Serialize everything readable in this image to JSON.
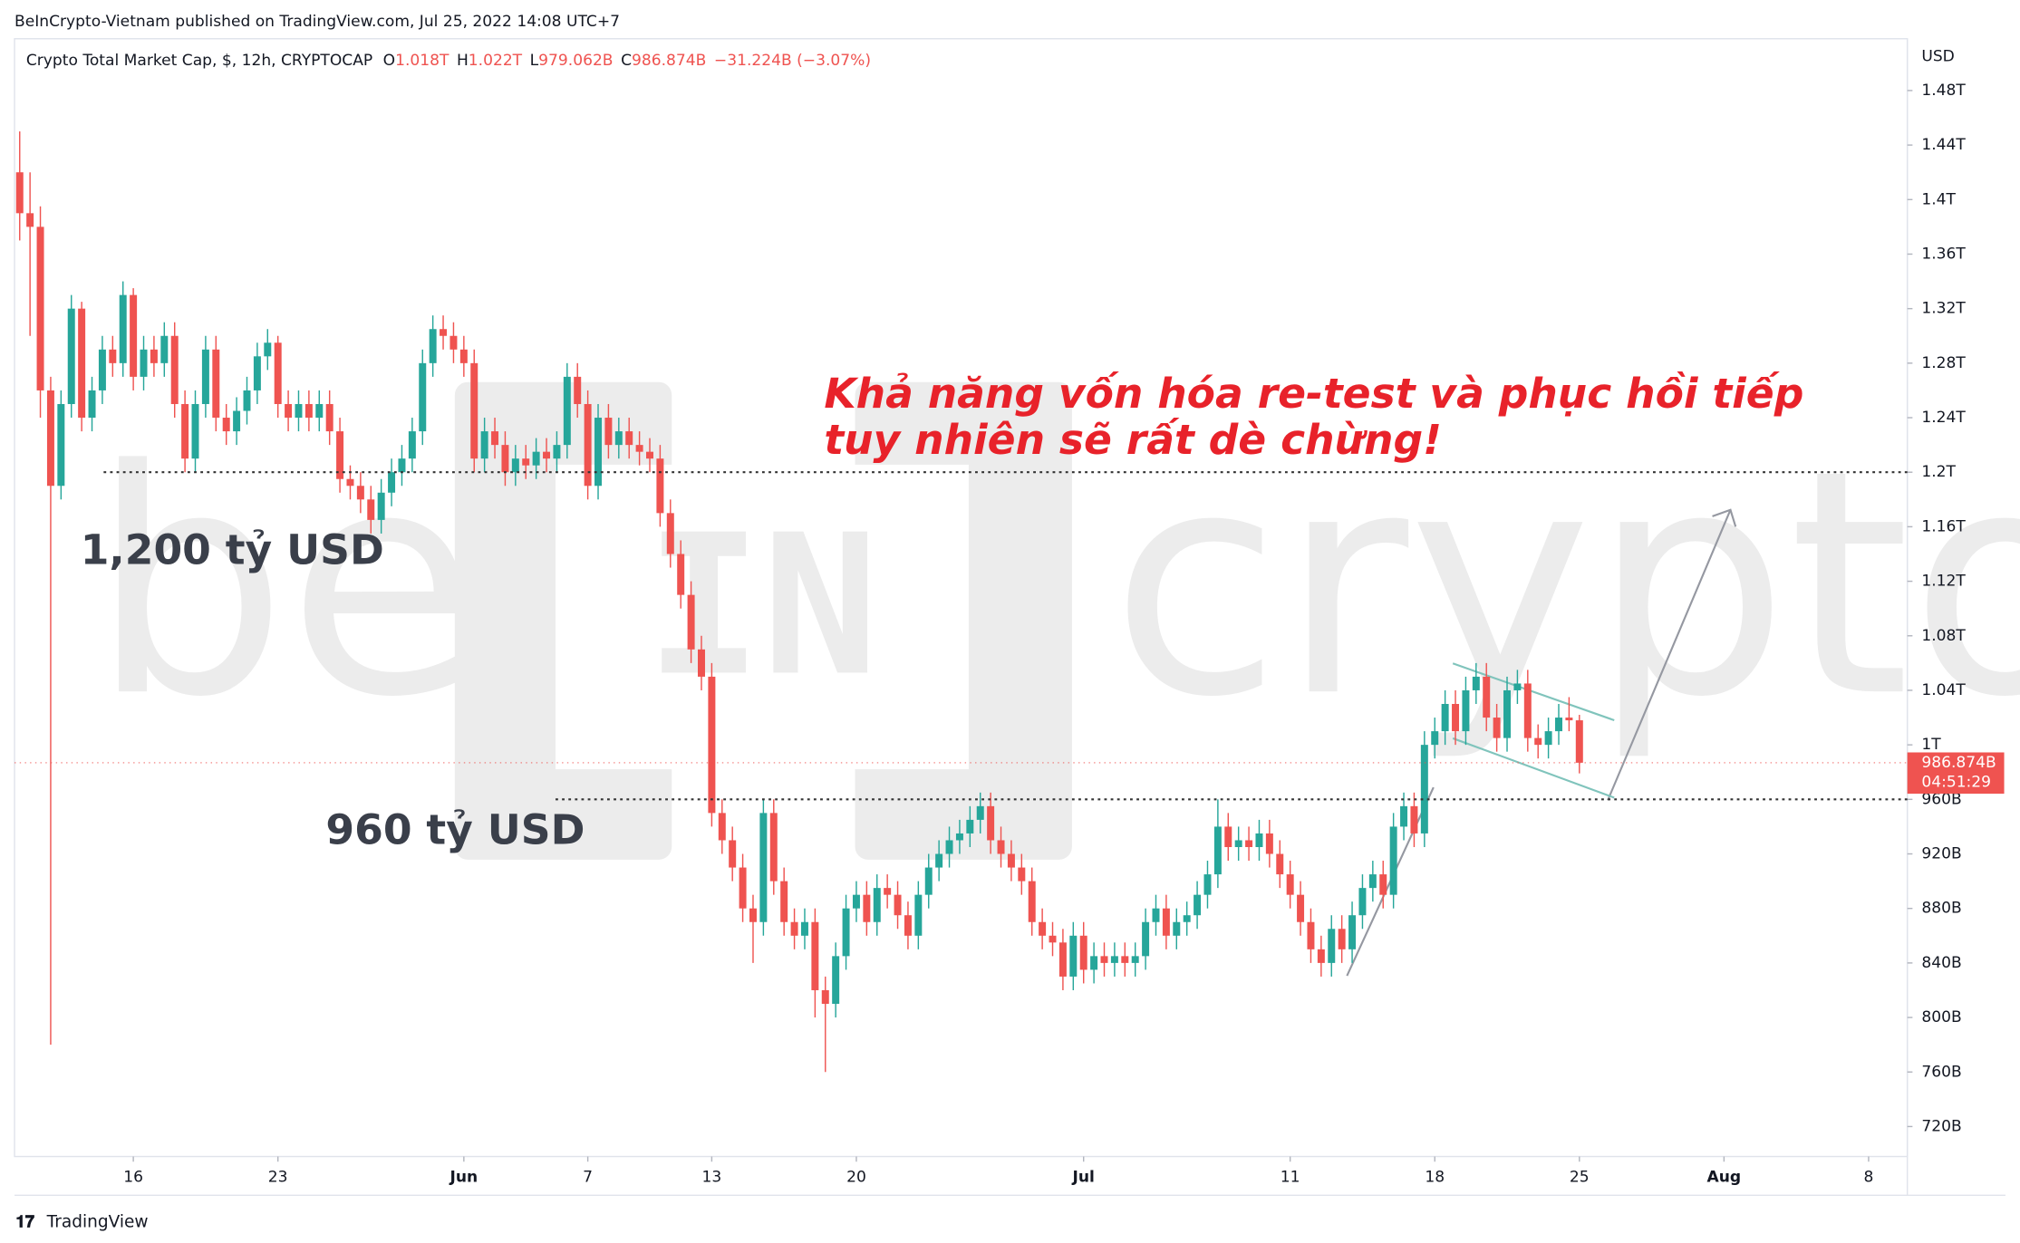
{
  "publisher": "BeInCrypto-Vietnam published on TradingView.com, Jul 25, 2022 14:08 UTC+7",
  "footer": "TradingView",
  "chart_data": {
    "type": "candlestick",
    "title": "Crypto Total Market Cap, $, 12h, CRYPTOCAP",
    "ohlc_header": {
      "o_label": "O",
      "o": "1.018T",
      "h_label": "H",
      "h": "1.022T",
      "l_label": "L",
      "l": "979.062B",
      "c_label": "C",
      "c": "986.874B",
      "change": "−31.224B (−3.07%)"
    },
    "y_unit": "USD",
    "up_color": "#26a69a",
    "down_color": "#ef5350",
    "candles": [
      [
        1420,
        1450,
        1370,
        1390
      ],
      [
        1390,
        1420,
        1300,
        1380
      ],
      [
        1380,
        1395,
        1240,
        1260
      ],
      [
        1260,
        1270,
        780,
        1190
      ],
      [
        1190,
        1260,
        1180,
        1250
      ],
      [
        1250,
        1330,
        1240,
        1320
      ],
      [
        1320,
        1325,
        1230,
        1240
      ],
      [
        1240,
        1270,
        1230,
        1260
      ],
      [
        1260,
        1300,
        1250,
        1290
      ],
      [
        1290,
        1300,
        1270,
        1280
      ],
      [
        1280,
        1340,
        1270,
        1330
      ],
      [
        1330,
        1335,
        1260,
        1270
      ],
      [
        1270,
        1300,
        1260,
        1290
      ],
      [
        1290,
        1300,
        1270,
        1280
      ],
      [
        1280,
        1310,
        1270,
        1300
      ],
      [
        1300,
        1310,
        1240,
        1250
      ],
      [
        1250,
        1260,
        1200,
        1210
      ],
      [
        1210,
        1260,
        1200,
        1250
      ],
      [
        1250,
        1300,
        1240,
        1290
      ],
      [
        1290,
        1300,
        1230,
        1240
      ],
      [
        1240,
        1250,
        1220,
        1230
      ],
      [
        1230,
        1255,
        1220,
        1245
      ],
      [
        1245,
        1270,
        1235,
        1260
      ],
      [
        1260,
        1295,
        1250,
        1285
      ],
      [
        1285,
        1305,
        1275,
        1295
      ],
      [
        1295,
        1300,
        1240,
        1250
      ],
      [
        1250,
        1260,
        1230,
        1240
      ],
      [
        1240,
        1260,
        1230,
        1250
      ],
      [
        1250,
        1260,
        1230,
        1240
      ],
      [
        1240,
        1260,
        1230,
        1250
      ],
      [
        1250,
        1260,
        1220,
        1230
      ],
      [
        1230,
        1240,
        1185,
        1195
      ],
      [
        1195,
        1205,
        1180,
        1190
      ],
      [
        1190,
        1200,
        1170,
        1180
      ],
      [
        1180,
        1190,
        1155,
        1165
      ],
      [
        1165,
        1195,
        1155,
        1185
      ],
      [
        1185,
        1210,
        1175,
        1200
      ],
      [
        1200,
        1220,
        1190,
        1210
      ],
      [
        1210,
        1240,
        1200,
        1230
      ],
      [
        1230,
        1290,
        1220,
        1280
      ],
      [
        1280,
        1315,
        1270,
        1305
      ],
      [
        1305,
        1315,
        1290,
        1300
      ],
      [
        1300,
        1310,
        1280,
        1290
      ],
      [
        1290,
        1300,
        1270,
        1280
      ],
      [
        1280,
        1290,
        1200,
        1210
      ],
      [
        1210,
        1240,
        1200,
        1230
      ],
      [
        1230,
        1240,
        1210,
        1220
      ],
      [
        1220,
        1230,
        1190,
        1200
      ],
      [
        1200,
        1220,
        1190,
        1210
      ],
      [
        1210,
        1220,
        1195,
        1205
      ],
      [
        1205,
        1225,
        1195,
        1215
      ],
      [
        1215,
        1225,
        1200,
        1210
      ],
      [
        1210,
        1230,
        1200,
        1220
      ],
      [
        1220,
        1280,
        1210,
        1270
      ],
      [
        1270,
        1280,
        1240,
        1250
      ],
      [
        1250,
        1260,
        1180,
        1190
      ],
      [
        1190,
        1250,
        1180,
        1240
      ],
      [
        1240,
        1250,
        1210,
        1220
      ],
      [
        1220,
        1240,
        1210,
        1230
      ],
      [
        1230,
        1240,
        1210,
        1220
      ],
      [
        1220,
        1230,
        1205,
        1215
      ],
      [
        1215,
        1225,
        1200,
        1210
      ],
      [
        1210,
        1220,
        1160,
        1170
      ],
      [
        1170,
        1180,
        1130,
        1140
      ],
      [
        1140,
        1150,
        1100,
        1110
      ],
      [
        1110,
        1120,
        1060,
        1070
      ],
      [
        1070,
        1080,
        1040,
        1050
      ],
      [
        1050,
        1060,
        940,
        950
      ],
      [
        950,
        960,
        920,
        930
      ],
      [
        930,
        940,
        900,
        910
      ],
      [
        910,
        920,
        870,
        880
      ],
      [
        880,
        890,
        840,
        870
      ],
      [
        870,
        960,
        860,
        950
      ],
      [
        950,
        960,
        890,
        900
      ],
      [
        900,
        910,
        860,
        870
      ],
      [
        870,
        880,
        850,
        860
      ],
      [
        860,
        880,
        850,
        870
      ],
      [
        870,
        880,
        800,
        820
      ],
      [
        820,
        830,
        760,
        810
      ],
      [
        810,
        855,
        800,
        845
      ],
      [
        845,
        890,
        835,
        880
      ],
      [
        880,
        900,
        870,
        890
      ],
      [
        890,
        900,
        860,
        870
      ],
      [
        870,
        905,
        860,
        895
      ],
      [
        895,
        905,
        880,
        890
      ],
      [
        890,
        900,
        865,
        875
      ],
      [
        875,
        885,
        850,
        860
      ],
      [
        860,
        900,
        850,
        890
      ],
      [
        890,
        920,
        880,
        910
      ],
      [
        910,
        930,
        900,
        920
      ],
      [
        920,
        940,
        910,
        930
      ],
      [
        930,
        945,
        920,
        935
      ],
      [
        935,
        955,
        925,
        945
      ],
      [
        945,
        965,
        935,
        955
      ],
      [
        955,
        965,
        920,
        930
      ],
      [
        930,
        940,
        910,
        920
      ],
      [
        920,
        930,
        900,
        910
      ],
      [
        910,
        920,
        890,
        900
      ],
      [
        900,
        910,
        860,
        870
      ],
      [
        870,
        880,
        850,
        860
      ],
      [
        860,
        870,
        845,
        855
      ],
      [
        855,
        865,
        820,
        830
      ],
      [
        830,
        870,
        820,
        860
      ],
      [
        860,
        870,
        825,
        835
      ],
      [
        835,
        855,
        825,
        845
      ],
      [
        845,
        855,
        830,
        840
      ],
      [
        840,
        855,
        830,
        845
      ],
      [
        845,
        855,
        830,
        840
      ],
      [
        840,
        855,
        830,
        845
      ],
      [
        845,
        880,
        835,
        870
      ],
      [
        870,
        890,
        860,
        880
      ],
      [
        880,
        890,
        850,
        860
      ],
      [
        860,
        880,
        850,
        870
      ],
      [
        870,
        885,
        860,
        875
      ],
      [
        875,
        900,
        865,
        890
      ],
      [
        890,
        915,
        880,
        905
      ],
      [
        905,
        960,
        895,
        940
      ],
      [
        940,
        950,
        915,
        925
      ],
      [
        925,
        940,
        915,
        930
      ],
      [
        930,
        940,
        915,
        925
      ],
      [
        925,
        945,
        915,
        935
      ],
      [
        935,
        945,
        910,
        920
      ],
      [
        920,
        930,
        895,
        905
      ],
      [
        905,
        915,
        880,
        890
      ],
      [
        890,
        900,
        860,
        870
      ],
      [
        870,
        880,
        840,
        850
      ],
      [
        850,
        860,
        830,
        840
      ],
      [
        840,
        875,
        830,
        865
      ],
      [
        865,
        875,
        840,
        850
      ],
      [
        850,
        885,
        840,
        875
      ],
      [
        875,
        905,
        865,
        895
      ],
      [
        895,
        915,
        885,
        905
      ],
      [
        905,
        915,
        880,
        890
      ],
      [
        890,
        950,
        880,
        940
      ],
      [
        940,
        965,
        930,
        955
      ],
      [
        955,
        965,
        925,
        935
      ],
      [
        935,
        1010,
        925,
        1000
      ],
      [
        1000,
        1020,
        990,
        1010
      ],
      [
        1010,
        1040,
        1000,
        1030
      ],
      [
        1030,
        1040,
        1000,
        1010
      ],
      [
        1010,
        1050,
        1000,
        1040
      ],
      [
        1040,
        1060,
        1030,
        1050
      ],
      [
        1050,
        1060,
        1010,
        1020
      ],
      [
        1020,
        1030,
        995,
        1005
      ],
      [
        1005,
        1050,
        995,
        1040
      ],
      [
        1040,
        1055,
        1030,
        1045
      ],
      [
        1045,
        1055,
        995,
        1005
      ],
      [
        1005,
        1015,
        990,
        1000
      ],
      [
        1000,
        1020,
        990,
        1010
      ],
      [
        1010,
        1030,
        1000,
        1020
      ],
      [
        1020,
        1035,
        1010,
        1018
      ],
      [
        1018,
        1022,
        979.062,
        986.874
      ]
    ],
    "xlim": [
      -0.5,
      182.75
    ],
    "xticks": [
      {
        "value": 11,
        "label": "16"
      },
      {
        "value": 25,
        "label": "23"
      },
      {
        "value": 43,
        "label": "Jun"
      },
      {
        "value": 55,
        "label": "7"
      },
      {
        "value": 67,
        "label": "13"
      },
      {
        "value": 81,
        "label": "20"
      },
      {
        "value": 103,
        "label": "Jul"
      },
      {
        "value": 123,
        "label": "11"
      },
      {
        "value": 137,
        "label": "18"
      },
      {
        "value": 151,
        "label": "25"
      },
      {
        "value": 165,
        "label": "Aug"
      },
      {
        "value": 179,
        "label": "8"
      }
    ],
    "ylim": [
      698,
      1518
    ],
    "yticks": [
      {
        "value": 720,
        "label": "720B"
      },
      {
        "value": 760,
        "label": "760B"
      },
      {
        "value": 800,
        "label": "800B"
      },
      {
        "value": 840,
        "label": "840B"
      },
      {
        "value": 880,
        "label": "880B"
      },
      {
        "value": 920,
        "label": "920B"
      },
      {
        "value": 960,
        "label": "960B"
      },
      {
        "value": 1000,
        "label": "1T"
      },
      {
        "value": 1040,
        "label": "1.04T"
      },
      {
        "value": 1080,
        "label": "1.08T"
      },
      {
        "value": 1120,
        "label": "1.12T"
      },
      {
        "value": 1160,
        "label": "1.16T"
      },
      {
        "value": 1200,
        "label": "1.2T"
      },
      {
        "value": 1240,
        "label": "1.24T"
      },
      {
        "value": 1280,
        "label": "1.28T"
      },
      {
        "value": 1320,
        "label": "1.32T"
      },
      {
        "value": 1360,
        "label": "1.36T"
      },
      {
        "value": 1400,
        "label": "1.4T"
      },
      {
        "value": 1440,
        "label": "1.44T"
      },
      {
        "value": 1480,
        "label": "1.48T"
      }
    ],
    "last_price": {
      "value": 986.874,
      "label": "986.874B",
      "countdown": "04:51:29"
    },
    "levels": [
      {
        "value": 1200,
        "label": "1,200 tỷ USD"
      },
      {
        "value": 960,
        "label": "960 tỷ USD"
      }
    ],
    "annotation": [
      "Khả năng vốn hóa re-test và phục hồi tiếp",
      "tuy nhiên sẽ rất dè chừng!"
    ],
    "watermark": {
      "left": "be",
      "center": "IN",
      "right": "crypto"
    }
  }
}
